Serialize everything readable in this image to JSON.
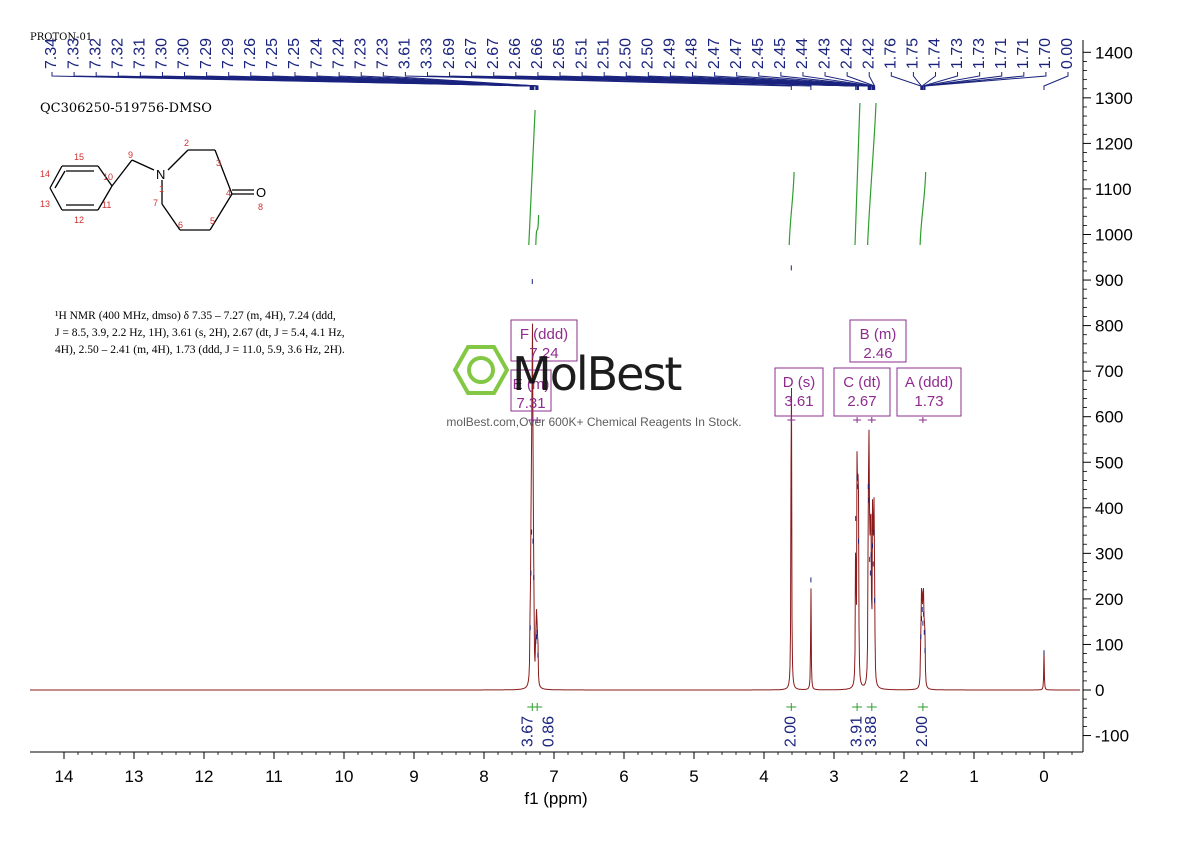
{
  "header": {
    "proton_tag": "PROTON-01",
    "sample_id": "QC306250-519756-DMSO"
  },
  "nmr_description": {
    "line1": "¹H NMR (400 MHz, dmso) δ 7.35 – 7.27 (m, 4H), 7.24 (ddd,",
    "line2": "J = 8.5, 3.9, 2.2 Hz, 1H), 3.61 (s, 2H), 2.67 (dt, J = 5.4, 4.1 Hz,",
    "line3": "4H), 2.50 – 2.41 (m, 4H), 1.73 (ddd, J = 11.0, 5.9, 3.6 Hz, 2H)."
  },
  "watermark": {
    "brand": "MolBest",
    "tagline": "molBest.com,Over 600K+ Chemical Reagents In Stock."
  },
  "structure": {
    "atom_labels": [
      "15",
      "9",
      "2",
      "3",
      "14",
      "10",
      "N",
      "1",
      "4",
      "O",
      "13",
      "11",
      "7",
      "8",
      "12",
      "6",
      "5"
    ]
  },
  "peak_labels": [
    "7.34",
    "7.33",
    "7.32",
    "7.32",
    "7.31",
    "7.30",
    "7.30",
    "7.29",
    "7.29",
    "7.26",
    "7.25",
    "7.25",
    "7.24",
    "7.24",
    "7.23",
    "7.23",
    "3.61",
    "3.33",
    "2.69",
    "2.67",
    "2.67",
    "2.66",
    "2.66",
    "2.65",
    "2.51",
    "2.51",
    "2.50",
    "2.50",
    "2.49",
    "2.48",
    "2.47",
    "2.47",
    "2.45",
    "2.45",
    "2.44",
    "2.43",
    "2.42",
    "2.42",
    "1.76",
    "1.75",
    "1.74",
    "1.73",
    "1.73",
    "1.71",
    "1.71",
    "1.70",
    "0.00"
  ],
  "multiplets": [
    {
      "letter": "F",
      "type": "ddd",
      "shift": "7.24",
      "title": "F (ddd)"
    },
    {
      "letter": "E",
      "type": "m",
      "shift": "7.31",
      "title": "E (m)"
    },
    {
      "letter": "D",
      "type": "s",
      "shift": "3.61",
      "title": "D (s)"
    },
    {
      "letter": "C",
      "type": "dt",
      "shift": "2.67",
      "title": "C (dt)"
    },
    {
      "letter": "B",
      "type": "m",
      "shift": "2.46",
      "title": "B (m)"
    },
    {
      "letter": "A",
      "type": "ddd",
      "shift": "1.73",
      "title": "A (ddd)"
    }
  ],
  "integrations": [
    {
      "ppm": 7.31,
      "value": "3.67"
    },
    {
      "ppm": 7.24,
      "value": "0.86"
    },
    {
      "ppm": 3.61,
      "value": "2.00"
    },
    {
      "ppm": 2.67,
      "value": "3.91"
    },
    {
      "ppm": 2.46,
      "value": "3.88"
    },
    {
      "ppm": 1.73,
      "value": "2.00"
    }
  ],
  "colors": {
    "spectrum": "#8b1a1a",
    "peak_label": "#1a237e",
    "multiplet": "#8e2c8e",
    "integral": "#2e9e2e",
    "watermark": "#7dc63a"
  },
  "chart_data": {
    "type": "line",
    "title": "",
    "xlabel": "f1 (ppm)",
    "ylabel": "",
    "x_reversed": true,
    "xlim": [
      14.5,
      -0.5
    ],
    "ylim": [
      -120,
      1430
    ],
    "x_ticks": [
      14,
      13,
      12,
      11,
      10,
      9,
      8,
      7,
      6,
      5,
      4,
      3,
      2,
      1,
      0
    ],
    "y_ticks": [
      -100,
      0,
      100,
      200,
      300,
      400,
      500,
      600,
      700,
      800,
      900,
      1000,
      1100,
      1200,
      1300,
      1400
    ],
    "peaks": [
      {
        "ppm": 7.34,
        "height": 140
      },
      {
        "ppm": 7.33,
        "height": 260
      },
      {
        "ppm": 7.32,
        "height": 350
      },
      {
        "ppm": 7.31,
        "height": 900
      },
      {
        "ppm": 7.3,
        "height": 330
      },
      {
        "ppm": 7.29,
        "height": 250
      },
      {
        "ppm": 7.26,
        "height": 110
      },
      {
        "ppm": 7.25,
        "height": 120
      },
      {
        "ppm": 7.24,
        "height": 130
      },
      {
        "ppm": 7.23,
        "height": 80
      },
      {
        "ppm": 3.61,
        "height": 930
      },
      {
        "ppm": 3.33,
        "height": 245
      },
      {
        "ppm": 2.69,
        "height": 380
      },
      {
        "ppm": 2.67,
        "height": 470
      },
      {
        "ppm": 2.66,
        "height": 450
      },
      {
        "ppm": 2.65,
        "height": 330
      },
      {
        "ppm": 2.51,
        "height": 450
      },
      {
        "ppm": 2.5,
        "height": 420
      },
      {
        "ppm": 2.49,
        "height": 290
      },
      {
        "ppm": 2.48,
        "height": 260
      },
      {
        "ppm": 2.47,
        "height": 300
      },
      {
        "ppm": 2.45,
        "height": 320
      },
      {
        "ppm": 2.44,
        "height": 280
      },
      {
        "ppm": 2.43,
        "height": 350
      },
      {
        "ppm": 2.42,
        "height": 200
      },
      {
        "ppm": 1.76,
        "height": 120
      },
      {
        "ppm": 1.75,
        "height": 160
      },
      {
        "ppm": 1.74,
        "height": 180
      },
      {
        "ppm": 1.73,
        "height": 150
      },
      {
        "ppm": 1.72,
        "height": 170
      },
      {
        "ppm": 1.71,
        "height": 130
      },
      {
        "ppm": 1.7,
        "height": 90
      },
      {
        "ppm": 0.0,
        "height": 85
      }
    ]
  }
}
